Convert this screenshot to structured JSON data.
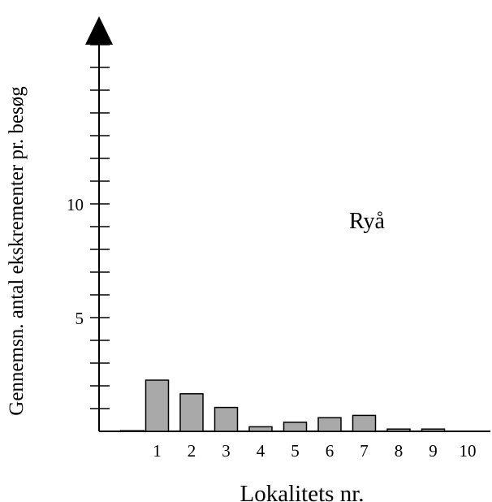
{
  "chart_data": {
    "type": "bar",
    "title": "",
    "annotation": "Ryå",
    "xlabel": "Lokalitets nr.",
    "ylabel": "Gennemsn. antal ekskrementer pr. besøg",
    "categories": [
      "1",
      "2",
      "3",
      "4",
      "5",
      "6",
      "7",
      "8",
      "9",
      "10"
    ],
    "values": [
      2.25,
      1.65,
      1.05,
      0.2,
      0.4,
      0.6,
      0.7,
      0.1,
      0.1,
      0.0
    ],
    "y_tick_labels": [
      "5",
      "10"
    ],
    "ylim": [
      0,
      17.5
    ],
    "y_minor_step": 1,
    "grid": false,
    "bar_color": "#a9a9a9"
  }
}
